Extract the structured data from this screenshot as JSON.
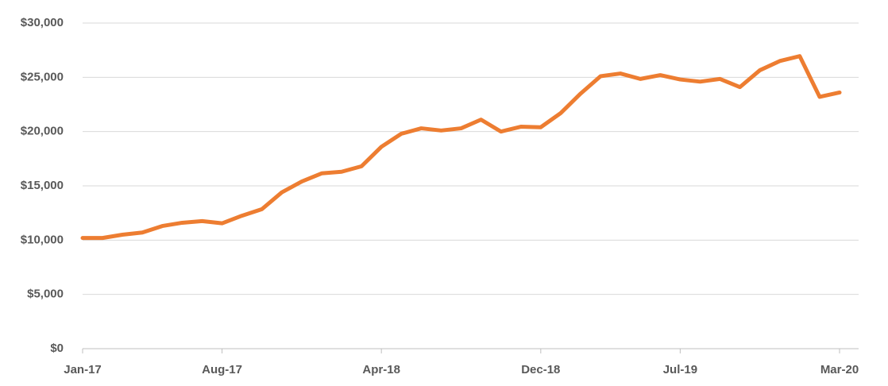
{
  "chart_data": {
    "type": "line",
    "categories": [
      "Jan-17",
      null,
      null,
      null,
      null,
      null,
      null,
      "Aug-17",
      null,
      null,
      null,
      null,
      null,
      null,
      null,
      "Apr-18",
      null,
      null,
      null,
      null,
      null,
      null,
      null,
      "Dec-18",
      null,
      null,
      null,
      null,
      null,
      null,
      "Jul-19",
      null,
      null,
      null,
      null,
      null,
      null,
      null,
      "Mar-20"
    ],
    "values": [
      10200,
      10200,
      10500,
      10700,
      11300,
      11600,
      11750,
      11550,
      12250,
      12850,
      14400,
      15400,
      16150,
      16300,
      16800,
      18600,
      19800,
      20300,
      20100,
      20300,
      21100,
      20000,
      20450,
      20400,
      21700,
      23500,
      25100,
      25350,
      24850,
      25200,
      24800,
      24600,
      24850,
      24100,
      25650,
      26500,
      26950,
      23200,
      23600
    ],
    "color": "#ed7d31",
    "ylim": [
      0,
      30000
    ],
    "yticks": [
      {
        "value": 0,
        "label": "$0"
      },
      {
        "value": 5000,
        "label": "$5,000"
      },
      {
        "value": 10000,
        "label": "$10,000"
      },
      {
        "value": 15000,
        "label": "$15,000"
      },
      {
        "value": 20000,
        "label": "$20,000"
      },
      {
        "value": 25000,
        "label": "$25,000"
      },
      {
        "value": 30000,
        "label": "$30,000"
      }
    ],
    "grid": true
  }
}
